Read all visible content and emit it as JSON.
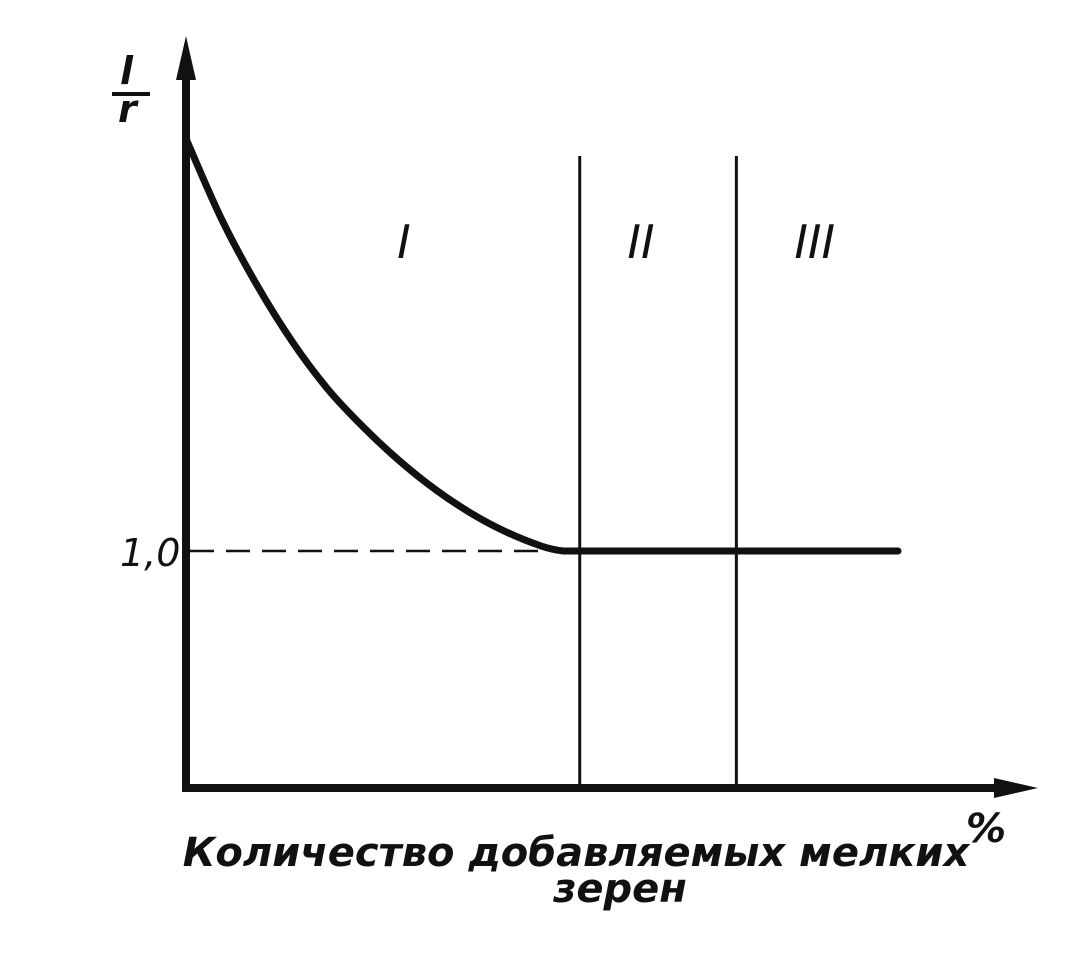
{
  "chart_data": {
    "type": "line",
    "title": "",
    "xlabel_lines": [
      "Количество добавляемых мелких",
      "зерен"
    ],
    "x_unit": "%",
    "ylabel_num": "l",
    "ylabel_den": "r",
    "y_tick": {
      "value": 1.0,
      "label": "1,0"
    },
    "ylim": [
      0,
      2.8
    ],
    "xlim": [
      0,
      100
    ],
    "region_boundaries": [
      55.3,
      77.3
    ],
    "regions": [
      {
        "label": "I",
        "x": 30.6
      },
      {
        "label": "II",
        "x": 63.9
      },
      {
        "label": "III",
        "x": 88.3
      }
    ],
    "series": [
      {
        "x": [
          0,
          5,
          10,
          15,
          20,
          25,
          30,
          35,
          40,
          45,
          50,
          53,
          55.3,
          60,
          70,
          80,
          90,
          100
        ],
        "y": [
          2.74,
          2.4,
          2.12,
          1.88,
          1.68,
          1.52,
          1.38,
          1.26,
          1.16,
          1.08,
          1.02,
          1.0,
          1.0,
          1.0,
          1.0,
          1.0,
          1.0,
          1.0
        ]
      }
    ]
  }
}
